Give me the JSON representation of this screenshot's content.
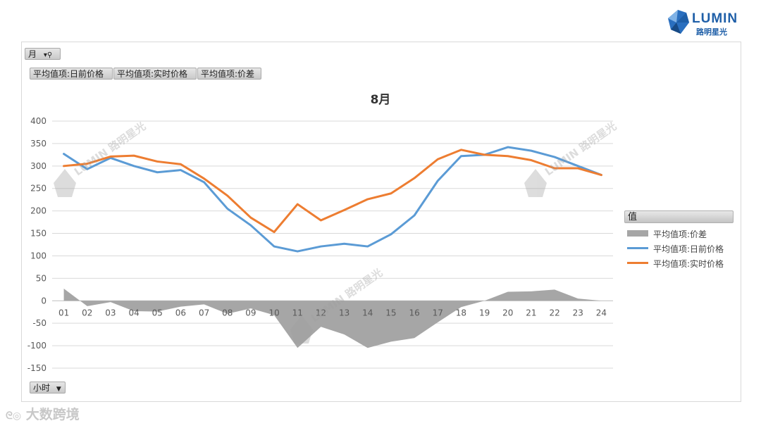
{
  "brand": {
    "name": "LUMIN",
    "sub": "路明星光",
    "watermark": "LUMIN 路明星光"
  },
  "footer_watermark": "大数跨境",
  "filters": {
    "month_button": "月",
    "fields": [
      "平均值项:日前价格",
      "平均值项:实时价格",
      "平均值项:价差"
    ],
    "hour_button": "小时"
  },
  "legend": {
    "header": "值",
    "items": [
      {
        "label": "平均值项:价差",
        "color": "#a6a6a6",
        "kind": "area"
      },
      {
        "label": "平均值项:日前价格",
        "color": "#5b9bd5",
        "kind": "line"
      },
      {
        "label": "平均值项:实时价格",
        "color": "#ed7d31",
        "kind": "line"
      }
    ]
  },
  "chart_data": {
    "type": "line",
    "title": "8月",
    "xlabel": "",
    "ylabel": "",
    "ylim": [
      -150,
      400
    ],
    "yticks": [
      400,
      350,
      300,
      250,
      200,
      150,
      100,
      50,
      0,
      -50,
      -100,
      -150
    ],
    "categories": [
      "01",
      "02",
      "03",
      "04",
      "05",
      "06",
      "07",
      "08",
      "09",
      "10",
      "11",
      "12",
      "13",
      "14",
      "15",
      "16",
      "17",
      "18",
      "19",
      "20",
      "21",
      "22",
      "23",
      "24"
    ],
    "grid": true,
    "legend_position": "right",
    "series": [
      {
        "name": "平均值项:日前价格",
        "type": "line",
        "color": "#5b9bd5",
        "values": [
          327,
          293,
          318,
          300,
          286,
          291,
          264,
          205,
          168,
          121,
          110,
          121,
          127,
          121,
          148,
          190,
          267,
          322,
          325,
          342,
          334,
          320,
          300,
          280
        ]
      },
      {
        "name": "平均值项:实时价格",
        "type": "line",
        "color": "#ed7d31",
        "values": [
          300,
          305,
          321,
          323,
          310,
          304,
          272,
          234,
          185,
          153,
          215,
          179,
          202,
          226,
          239,
          273,
          315,
          336,
          325,
          322,
          313,
          295,
          295,
          280
        ]
      },
      {
        "name": "平均值项:价差",
        "type": "area",
        "color": "#a6a6a6",
        "values": [
          27,
          -12,
          -3,
          -23,
          -24,
          -13,
          -8,
          -29,
          -17,
          -32,
          -105,
          -58,
          -75,
          -105,
          -91,
          -83,
          -48,
          -14,
          0,
          20,
          21,
          25,
          5,
          0
        ]
      }
    ]
  }
}
